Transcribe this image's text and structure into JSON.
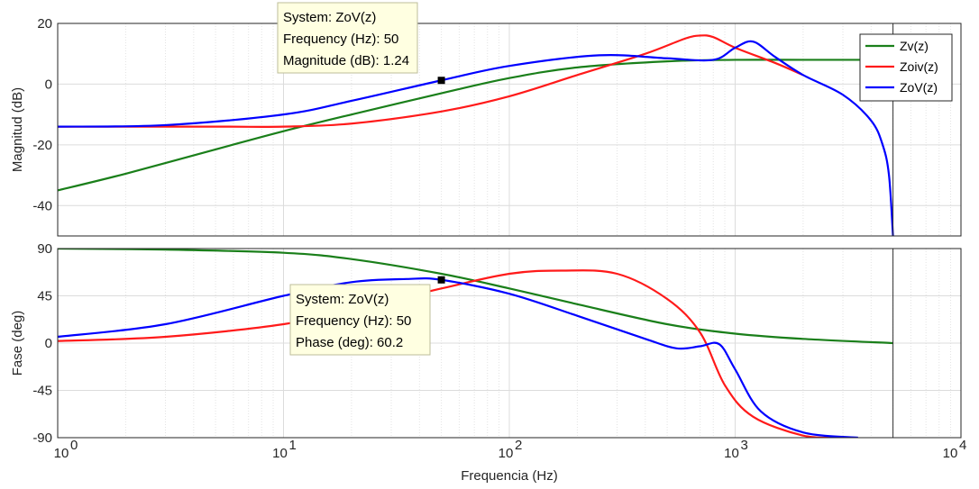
{
  "chart_data": [
    {
      "type": "line",
      "ylabel": "Magnitud (dB)",
      "xscale": "log",
      "xlim": [
        1,
        10000
      ],
      "ylim": [
        -50,
        20
      ],
      "yticks": [
        "20",
        "0",
        "-20",
        "-40"
      ],
      "grid": true,
      "legend_position": "top-right",
      "series": [
        {
          "name": "Zv(z)",
          "color": "#1a7f1a",
          "x": [
            1,
            2,
            5,
            10,
            20,
            50,
            100,
            200,
            500,
            1000,
            2000,
            5000
          ],
          "y": [
            -35,
            -29.5,
            -21.5,
            -15.5,
            -10,
            -3,
            2,
            5.5,
            7.5,
            8,
            8,
            8
          ]
        },
        {
          "name": "Zoiv(z)",
          "color": "#ff1a1a",
          "x": [
            1,
            5,
            10,
            20,
            50,
            100,
            200,
            400,
            600,
            700,
            800,
            1000,
            1500,
            2000
          ],
          "y": [
            -14,
            -14,
            -14,
            -13,
            -9,
            -4,
            3,
            10,
            15,
            16,
            15.5,
            12,
            7,
            3
          ]
        },
        {
          "name": "ZoV(z)",
          "color": "#0000ff",
          "x": [
            1,
            3,
            10,
            20,
            50,
            100,
            250,
            500,
            800,
            1000,
            1200,
            1500,
            2000,
            3000,
            4000,
            4500,
            4800,
            5000
          ],
          "y": [
            -14,
            -13.5,
            -10,
            -5.5,
            1.24,
            6,
            9.5,
            8.5,
            8,
            12,
            14,
            9,
            3,
            -3.5,
            -12,
            -20,
            -30,
            -50
          ]
        }
      ],
      "datatip": {
        "line1": "System: ZoV(z)",
        "line2": "Frequency (Hz): 50",
        "line3": "Magnitude (dB): 1.24",
        "x": 50,
        "y": 1.24
      }
    },
    {
      "type": "line",
      "ylabel": "Fase (deg)",
      "xlabel": "Frequencia  (Hz)",
      "xscale": "log",
      "xlim": [
        1,
        10000
      ],
      "ylim": [
        -90,
        90
      ],
      "yticks": [
        "90",
        "45",
        "0",
        "-45",
        "-90"
      ],
      "xticks": [
        "10",
        "10",
        "10",
        "10",
        "10"
      ],
      "xtick_exponents": [
        "0",
        "1",
        "2",
        "3",
        "4"
      ],
      "grid": true,
      "series": [
        {
          "name": "Zv(z)",
          "color": "#1a7f1a",
          "x": [
            1,
            3,
            10,
            20,
            50,
            100,
            200,
            500,
            1000,
            2000,
            5000
          ],
          "y": [
            90,
            89,
            86,
            80,
            66,
            52,
            37,
            18,
            9,
            4,
            0
          ]
        },
        {
          "name": "Zoiv(z)",
          "color": "#ff1a1a",
          "x": [
            1,
            3,
            10,
            20,
            50,
            100,
            170,
            300,
            500,
            700,
            900,
            1200,
            2000,
            3000
          ],
          "y": [
            2,
            6,
            18,
            32,
            52,
            66,
            69,
            66,
            42,
            10,
            -40,
            -70,
            -88,
            -90
          ]
        },
        {
          "name": "ZoV(z)",
          "color": "#0000ff",
          "x": [
            1,
            3,
            10,
            20,
            35,
            50,
            100,
            200,
            400,
            550,
            700,
            850,
            1000,
            1300,
            2000,
            3500
          ],
          "y": [
            6,
            18,
            45,
            58,
            61,
            60.2,
            47,
            26,
            4,
            -5,
            -3,
            -1,
            -25,
            -65,
            -85,
            -90
          ]
        }
      ],
      "datatip": {
        "line1": "System: ZoV(z)",
        "line2": "Frequency (Hz): 50",
        "line3": "Phase (deg): 60.2",
        "x": 50,
        "y": 60.2
      }
    }
  ]
}
